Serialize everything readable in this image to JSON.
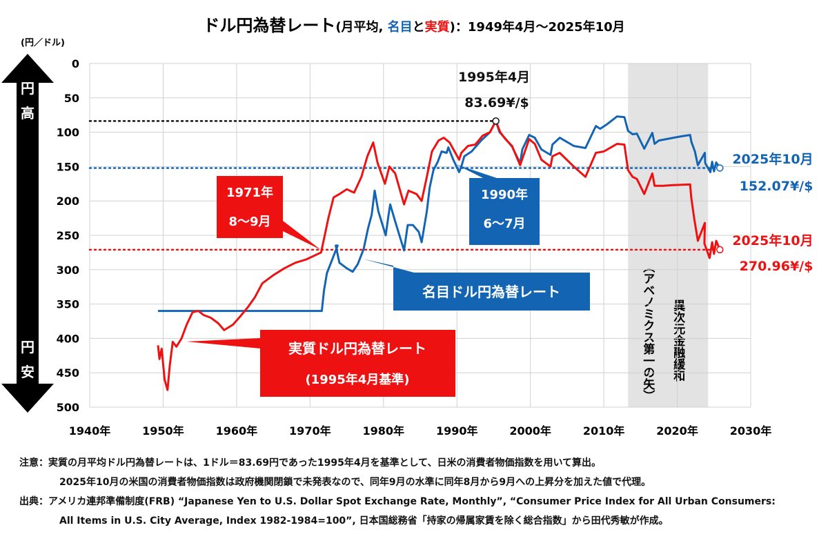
{
  "chart_data": {
    "type": "line",
    "title": {
      "part1": "ドル円為替レート",
      "part2": "(月平均, ",
      "nominal_word": "名目",
      "part3": "と",
      "real_word": "実質",
      "part4": ")：1949年4月〜2025年10月"
    },
    "ylabel": "(円／ドル)",
    "ylim": [
      0,
      500
    ],
    "y_reversed": true,
    "yticks": [
      0,
      50,
      100,
      150,
      200,
      250,
      300,
      350,
      400,
      450,
      500
    ],
    "xlim": [
      1940,
      2030
    ],
    "xticks": [
      "1940年",
      "1950年",
      "1960年",
      "1970年",
      "1980年",
      "1990年",
      "2000年",
      "2010年",
      "2020年",
      "2030年"
    ],
    "grid": true,
    "colors": {
      "nominal": "#1464b4",
      "real": "#ee1111",
      "shade": "#e3e3e3"
    },
    "side_arrow": {
      "top": "円高",
      "bottom": "円安"
    },
    "shaded_period": {
      "from": 2013.3,
      "to": 2024.2,
      "label1": "（アベノミクス第一の矢）",
      "label2": "異次元金融緩和"
    },
    "series": [
      {
        "name": "名目ドル円為替レート",
        "color": "#1464b4",
        "points": [
          [
            1949.3,
            360
          ],
          [
            1971.6,
            360
          ],
          [
            1971.9,
            330
          ],
          [
            1972.3,
            305
          ],
          [
            1973.1,
            265
          ],
          [
            1973.5,
            265
          ],
          [
            1974,
            290
          ],
          [
            1975,
            298
          ],
          [
            1975.8,
            303
          ],
          [
            1976.5,
            292
          ],
          [
            1977.3,
            270
          ],
          [
            1977.9,
            240
          ],
          [
            1978.4,
            220
          ],
          [
            1978.8,
            185
          ],
          [
            1979.3,
            215
          ],
          [
            1980.3,
            250
          ],
          [
            1980.7,
            220
          ],
          [
            1980.12,
            205
          ],
          [
            1981.6,
            230
          ],
          [
            1982.8,
            272
          ],
          [
            1983.3,
            235
          ],
          [
            1984,
            235
          ],
          [
            1984.8,
            245
          ],
          [
            1985.2,
            260
          ],
          [
            1985.9,
            215
          ],
          [
            1986.3,
            180
          ],
          [
            1986.8,
            155
          ],
          [
            1987.4,
            143
          ],
          [
            1987.12,
            128
          ],
          [
            1988.6,
            130
          ],
          [
            1988.11,
            122
          ],
          [
            1989.5,
            140
          ],
          [
            1990.3,
            158
          ],
          [
            1990.6,
            150
          ],
          [
            1991,
            135
          ],
          [
            1992,
            128
          ],
          [
            1993.3,
            112
          ],
          [
            1994.5,
            100
          ],
          [
            1995.3,
            83.69
          ],
          [
            1995.8,
            100
          ],
          [
            1996.5,
            108
          ],
          [
            1997.5,
            121
          ],
          [
            1998.6,
            145
          ],
          [
            1998.9,
            125
          ],
          [
            1999.11,
            104
          ],
          [
            2000.6,
            108
          ],
          [
            2001.5,
            125
          ],
          [
            2002.1,
            133
          ],
          [
            2003,
            118
          ],
          [
            2004,
            108
          ],
          [
            2005.12,
            120
          ],
          [
            2007.5,
            123
          ],
          [
            2008.12,
            91
          ],
          [
            2009.5,
            95
          ],
          [
            2010.5,
            88
          ],
          [
            2011.8,
            77
          ],
          [
            2012.8,
            78
          ],
          [
            2013.3,
            98
          ],
          [
            2013.12,
            103
          ],
          [
            2014.5,
            102
          ],
          [
            2015.5,
            124
          ],
          [
            2016.6,
            101
          ],
          [
            2016.12,
            117
          ],
          [
            2017.5,
            112
          ],
          [
            2018.5,
            110
          ],
          [
            2019.5,
            108
          ],
          [
            2020.5,
            106
          ],
          [
            2021.1,
            104
          ],
          [
            2021.12,
            114
          ],
          [
            2022.4,
            128
          ],
          [
            2022.8,
            148
          ],
          [
            2023.1,
            130
          ],
          [
            2023.8,
            145
          ],
          [
            2024.5,
            158
          ],
          [
            2024.75,
            143
          ],
          [
            2025.0,
            157
          ],
          [
            2025.3,
            144
          ],
          [
            2025.8,
            152.07
          ]
        ]
      },
      {
        "name": "実質ドル円為替レート",
        "color": "#ee1111",
        "points": [
          [
            1949.3,
            410
          ],
          [
            1949.5,
            430
          ],
          [
            1949.8,
            415
          ],
          [
            1950.2,
            460
          ],
          [
            1950.6,
            475
          ],
          [
            1950.9,
            440
          ],
          [
            1951.3,
            405
          ],
          [
            1951.8,
            412
          ],
          [
            1952.5,
            400
          ],
          [
            1953.2,
            380
          ],
          [
            1954,
            362
          ],
          [
            1954.8,
            360
          ],
          [
            1955.5,
            366
          ],
          [
            1956.5,
            370
          ],
          [
            1957.5,
            378
          ],
          [
            1958.3,
            388
          ],
          [
            1959.5,
            380
          ],
          [
            1960.5,
            368
          ],
          [
            1961.5,
            355
          ],
          [
            1962.5,
            340
          ],
          [
            1963.5,
            320
          ],
          [
            1965,
            308
          ],
          [
            1966.5,
            298
          ],
          [
            1968,
            290
          ],
          [
            1969.5,
            285
          ],
          [
            1971.5,
            275
          ],
          [
            1971.9,
            255
          ],
          [
            1972.5,
            225
          ],
          [
            1973.2,
            195
          ],
          [
            1974,
            190
          ],
          [
            1975,
            183
          ],
          [
            1976,
            188
          ],
          [
            1977,
            165
          ],
          [
            1977.8,
            135
          ],
          [
            1978.6,
            115
          ],
          [
            1979.2,
            145
          ],
          [
            1980.2,
            175
          ],
          [
            1980.8,
            150
          ],
          [
            1981.6,
            160
          ],
          [
            1982.8,
            205
          ],
          [
            1983.4,
            185
          ],
          [
            1984.5,
            190
          ],
          [
            1985.2,
            200
          ],
          [
            1985.9,
            165
          ],
          [
            1986.6,
            128
          ],
          [
            1987.5,
            112
          ],
          [
            1988.2,
            108
          ],
          [
            1989,
            115
          ],
          [
            1990.3,
            140
          ],
          [
            1990.6,
            130
          ],
          [
            1991.5,
            120
          ],
          [
            1992.5,
            118
          ],
          [
            1993.5,
            105
          ],
          [
            1994.5,
            100
          ],
          [
            1995.3,
            83.69
          ],
          [
            1995.9,
            100
          ],
          [
            1996.6,
            110
          ],
          [
            1997.5,
            120
          ],
          [
            1998.6,
            148
          ],
          [
            1999.11,
            110
          ],
          [
            2000.6,
            117
          ],
          [
            2001.5,
            140
          ],
          [
            2002.1,
            150
          ],
          [
            2003,
            135
          ],
          [
            2004,
            130
          ],
          [
            2005.12,
            150
          ],
          [
            2007.5,
            165
          ],
          [
            2008.12,
            130
          ],
          [
            2010,
            128
          ],
          [
            2011.8,
            117
          ],
          [
            2012.8,
            118
          ],
          [
            2013.3,
            155
          ],
          [
            2013.12,
            165
          ],
          [
            2014.5,
            168
          ],
          [
            2015.5,
            190
          ],
          [
            2016.6,
            160
          ],
          [
            2016.12,
            178
          ],
          [
            2018,
            178
          ],
          [
            2019.5,
            177
          ],
          [
            2021.1,
            176
          ],
          [
            2021.9,
            195
          ],
          [
            2022.3,
            225
          ],
          [
            2022.8,
            258
          ],
          [
            2023.1,
            232
          ],
          [
            2023.7,
            262
          ],
          [
            2024.4,
            283
          ],
          [
            2024.75,
            260
          ],
          [
            2025.0,
            277
          ],
          [
            2025.3,
            258
          ],
          [
            2025.8,
            270.96
          ]
        ]
      }
    ],
    "reference_lines": [
      {
        "value": 83.69,
        "color": "#111111",
        "to": 1995.3
      },
      {
        "value": 152.07,
        "color": "#1464b4",
        "to": 2025.8
      },
      {
        "value": 270.96,
        "color": "#ee1111",
        "to": 2025.8
      }
    ],
    "annotations": {
      "peak": {
        "line1": "1995年4月",
        "line2": "83.69¥/$"
      },
      "nominal_end": {
        "line1": "2025年10月",
        "line2": "152.07¥/$"
      },
      "real_end": {
        "line1": "2025年10月",
        "line2": "270.96¥/$"
      },
      "box_1971": {
        "line1": "1971年",
        "line2": "8〜9月"
      },
      "box_1990": {
        "line1": "1990年",
        "line2": "6〜7月"
      },
      "box_nominal": {
        "line1": "名目ドル円為替レート"
      },
      "box_real": {
        "line1": "実質ドル円為替レート",
        "line2": "(1995年4月基準)"
      }
    }
  },
  "notes": {
    "line1": "注意：実質の月平均ドル円為替レートは、1ドル＝83.69円であった1995年4月を基準として、日米の消費者物価指数を用いて算出。",
    "line2": "2025年10月の米国の消費者物価指数は政府機関閉鎖で未発表なので、同年9月の水準に同年8月から9月への上昇分を加えた値で代理。",
    "line3": "出典：アメリカ連邦準備制度(FRB) “Japanese Yen to U.S. Dollar Spot Exchange Rate, Monthly”, “Consumer Price Index for All Urban Consumers:",
    "line4": "All Items in U.S. City Average, Index 1982-1984=100”, 日本国総務省「持家の帰属家賃を除く総合指数」から田代秀敏が作成。"
  }
}
